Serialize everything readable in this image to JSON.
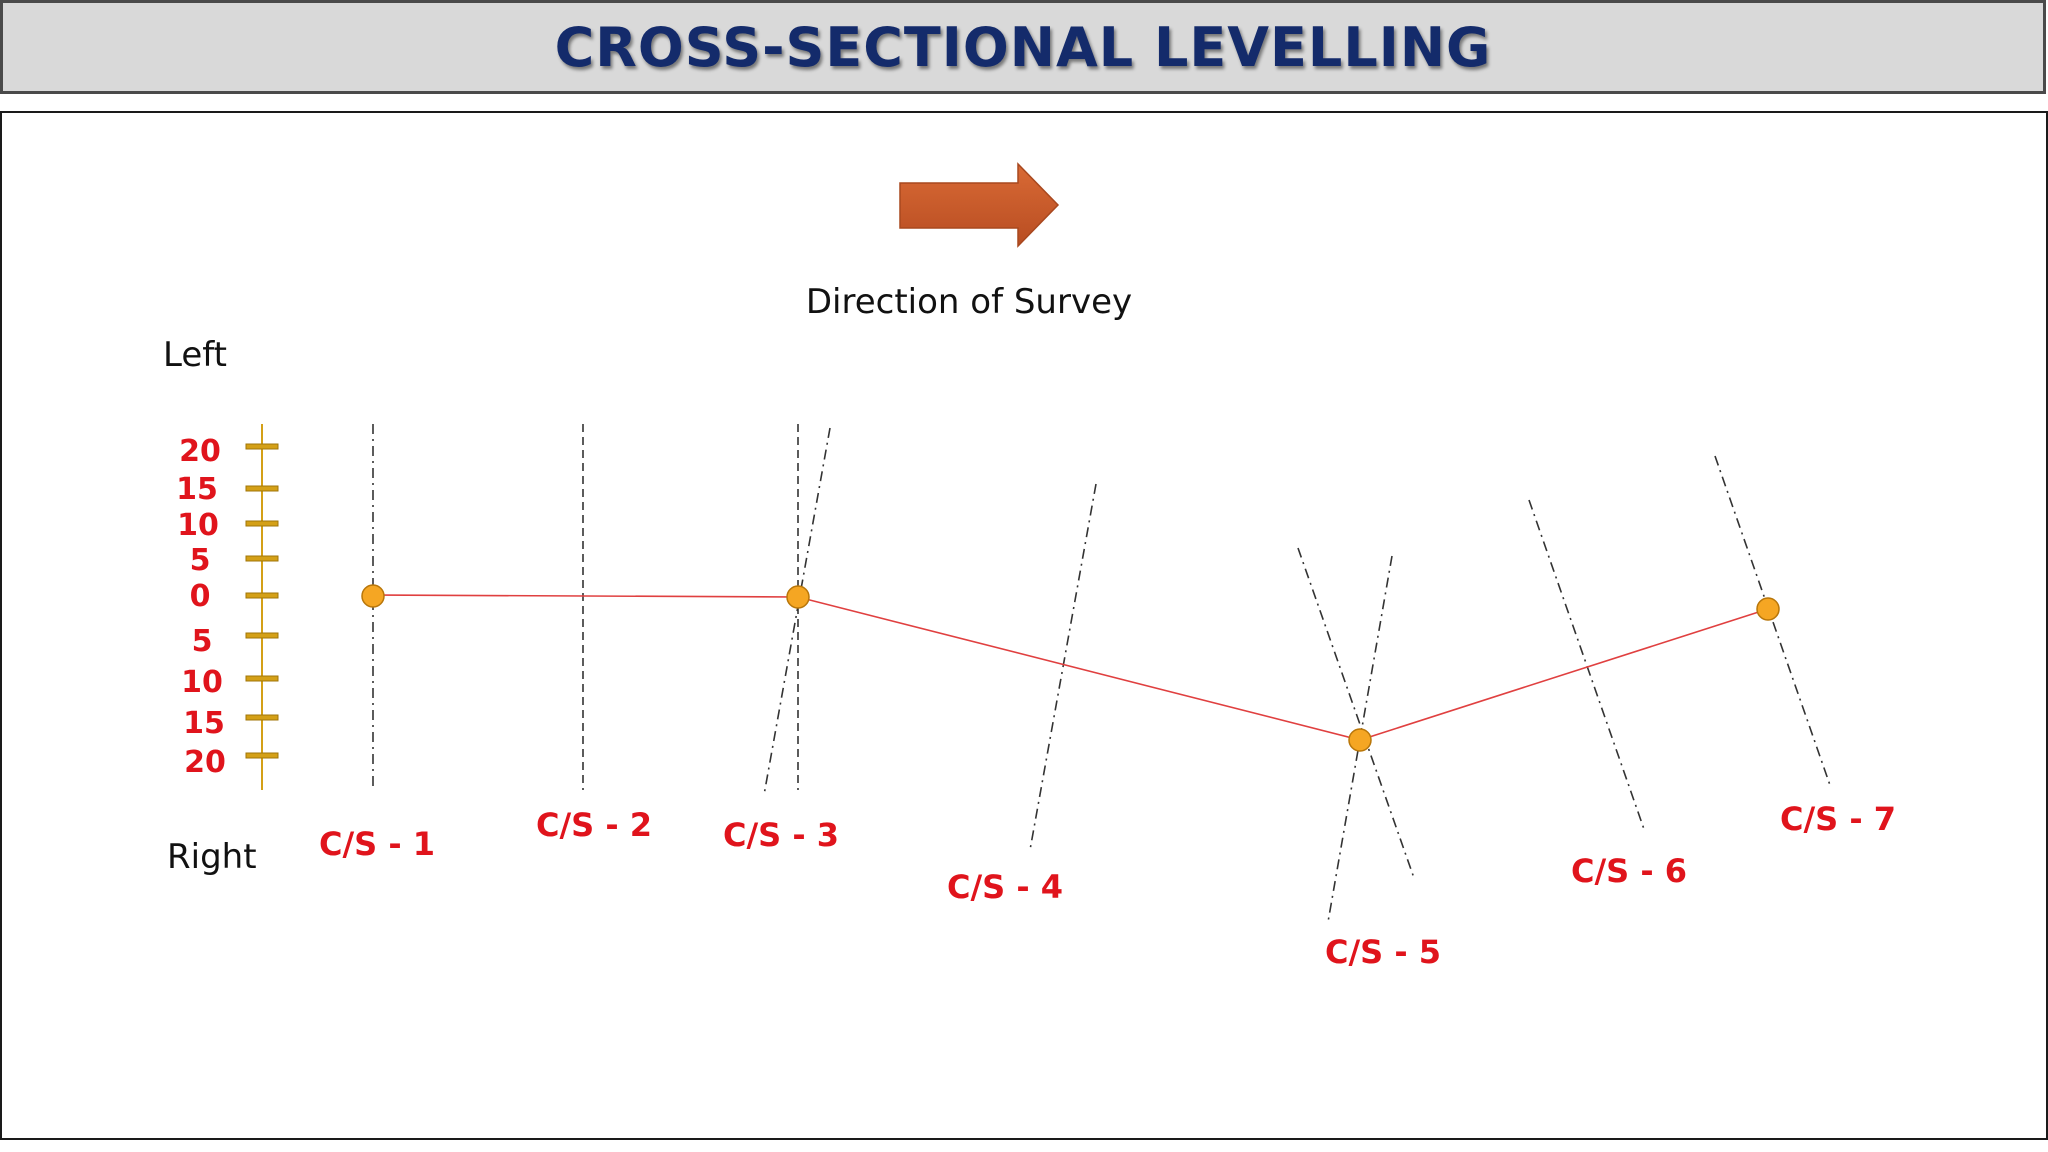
{
  "title": "CROSS-SECTIONAL LEVELLING",
  "direction_label": "Direction of Survey",
  "left_label": "Left",
  "right_label": "Right",
  "scale_ticks": [
    "20",
    "15",
    "10",
    "5",
    "0",
    "5",
    "10",
    "15",
    "20"
  ],
  "sections": [
    "C/S - 1",
    "C/S - 2",
    "C/S - 3",
    "C/S - 4",
    "C/S - 5",
    "C/S - 6",
    "C/S - 7"
  ],
  "colors": {
    "title_text": "#142b6b",
    "title_bg": "#d9d9d9",
    "arrow": "#c9582a",
    "route_line": "#e04040",
    "station_point": "#f5a623",
    "scale": "#d4a017",
    "section_label": "#e0141c"
  }
}
